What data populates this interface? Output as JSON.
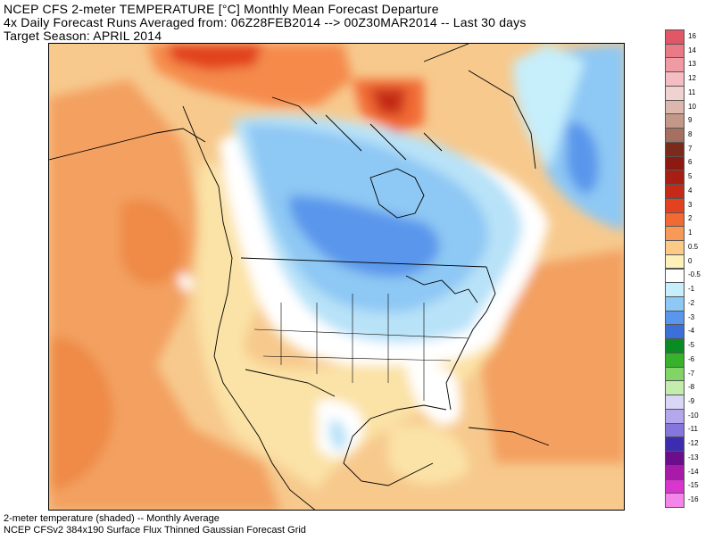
{
  "header": {
    "line1": "NCEP CFS 2-meter TEMPERATURE [°C] Monthly Mean Forecast Departure",
    "line2": "4x Daily Forecast Runs Averaged from: 06Z28FEB2014 --> 00Z30MAR2014 -- Last 30 days",
    "line3": "Target Season: APRIL 2014"
  },
  "footer": {
    "line1": "2-meter temperature (shaded) -- Monthly Average",
    "line2": "NCEP CFSv2 384x190 Surface Flux Thinned Gaussian Forecast Grid"
  },
  "legend": [
    {
      "label": "16",
      "color": "#e05767"
    },
    {
      "label": "14",
      "color": "#ea7a86"
    },
    {
      "label": "13",
      "color": "#f09aa4"
    },
    {
      "label": "12",
      "color": "#f5bcc2"
    },
    {
      "label": "11",
      "color": "#f0d2d0"
    },
    {
      "label": "10",
      "color": "#dcb7ad"
    },
    {
      "label": "9",
      "color": "#c49888"
    },
    {
      "label": "8",
      "color": "#a5705f"
    },
    {
      "label": "7",
      "color": "#7a2b1b"
    },
    {
      "label": "6",
      "color": "#8c1a12"
    },
    {
      "label": "5",
      "color": "#a81e13"
    },
    {
      "label": "4",
      "color": "#c52a19"
    },
    {
      "label": "3",
      "color": "#e2421e"
    },
    {
      "label": "2",
      "color": "#f16a34"
    },
    {
      "label": "1",
      "color": "#f79a57"
    },
    {
      "label": "0.5",
      "color": "#fbca87"
    },
    {
      "label": "0",
      "color": "#fdf0b8"
    },
    {
      "label": "-0.5",
      "color": "#ffffff"
    },
    {
      "label": "-1",
      "color": "#c6eefb"
    },
    {
      "label": "-2",
      "color": "#8ec8f4"
    },
    {
      "label": "-3",
      "color": "#5a96eb"
    },
    {
      "label": "-4",
      "color": "#3a70d8"
    },
    {
      "label": "-5",
      "color": "#0a8b24"
    },
    {
      "label": "-6",
      "color": "#38b22d"
    },
    {
      "label": "-7",
      "color": "#82d466"
    },
    {
      "label": "-8",
      "color": "#c3ecae"
    },
    {
      "label": "-9",
      "color": "#dad6f5"
    },
    {
      "label": "-10",
      "color": "#b4a7ec"
    },
    {
      "label": "-11",
      "color": "#8476dc"
    },
    {
      "label": "-12",
      "color": "#3c2cb0"
    },
    {
      "label": "-13",
      "color": "#6a0e8c"
    },
    {
      "label": "-14",
      "color": "#a81aa8"
    },
    {
      "label": "-15",
      "color": "#d836cf"
    },
    {
      "label": "-16",
      "color": "#f486e9"
    }
  ]
}
